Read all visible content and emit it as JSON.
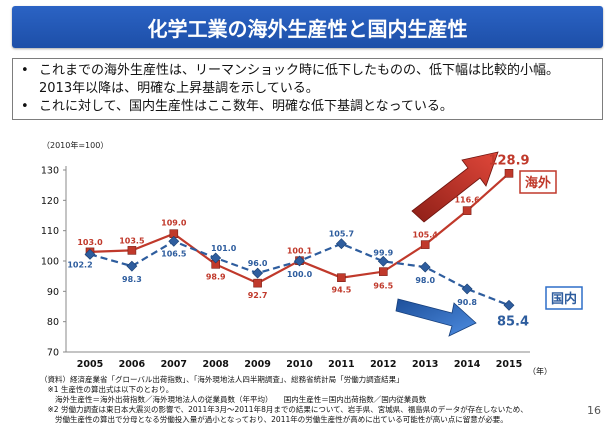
{
  "slide": {
    "title": "化学工業の海外生産性と国内生産性",
    "bullets": [
      {
        "marker": "•",
        "lines": [
          "これまでの海外生産性は、リーマンショック時に低下したものの、低下幅は比較的小幅。",
          "2013年以降は、明確な上昇基調を示している。"
        ]
      },
      {
        "marker": "•",
        "lines": [
          "これに対して、国内生産性はここ数年、明確な低下基調となっている。"
        ]
      }
    ],
    "footnotes": [
      "（資料）経済産業省「グローバル出荷指数」、「海外現地法人四半期調査」、総務省統計局「労働力調査結果」",
      "　※1 生産性の算出式は以下のとおり。",
      "　　海外生産性＝海外出荷指数／海外現地法人の従業員数（年平均）　　国内生産性＝国内出荷指数／国内従業員数",
      "　※2 労働力調査は東日本大震災の影響で、2011年3月〜2011年8月までの結果について、岩手県、宮城県、福島県のデータが存在しないため、",
      "　　労働生産性の算出で分母となる労働投入量が過小となっており、2011年の労働生産性が高めに出ている可能性が高い点に留意が必要。"
    ],
    "page_number": "16"
  },
  "chart_data": {
    "type": "line",
    "unit_label": "（2010年=100）",
    "x": [
      "2005",
      "2006",
      "2007",
      "2008",
      "2009",
      "2010",
      "2011",
      "2012",
      "2013",
      "2014",
      "2015"
    ],
    "x_unit": "（年）",
    "ylim": [
      70,
      130
    ],
    "yticks": [
      "70",
      "80",
      "90",
      "100",
      "110",
      "120",
      "130"
    ],
    "series": [
      {
        "name": "海外",
        "values": [
          103.0,
          103.5,
          109.0,
          98.9,
          92.7,
          100.1,
          94.5,
          96.5,
          105.4,
          116.6,
          128.9
        ],
        "labels": [
          "103.0",
          "103.5",
          "109.0",
          "98.9",
          "92.7",
          "100.1",
          "94.5",
          "96.5",
          "105.4",
          "116.6",
          "128.9"
        ],
        "color": "#c0392b",
        "line": "solid"
      },
      {
        "name": "国内",
        "values": [
          102.2,
          98.3,
          106.5,
          101.0,
          96.0,
          100.0,
          105.7,
          99.9,
          98.0,
          90.8,
          85.4
        ],
        "labels": [
          "102.2",
          "98.3",
          "106.5",
          "101.0",
          "96.0",
          "100.0",
          "105.7",
          "99.9",
          "98.0",
          "90.8",
          "85.4"
        ],
        "color": "#2e5d9e",
        "line": "dashed"
      }
    ],
    "colors": {
      "overseas_arrow": "#c0392b",
      "domestic_arrow": "#2e6fc9"
    },
    "grid": false
  }
}
